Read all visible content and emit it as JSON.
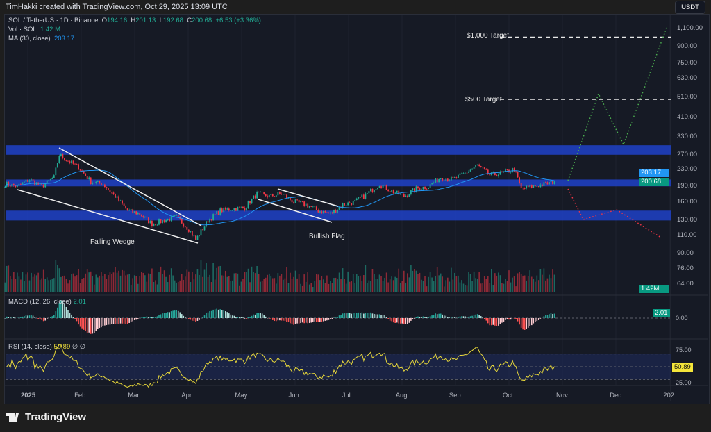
{
  "header": {
    "caption": "TimHakki created with TradingView.com, Oct 29, 2025 13:09 UTC"
  },
  "legend": {
    "symbol": "SOL / TetherUS · 1D · Binance",
    "o_label": "O",
    "o": "194.16",
    "h_label": "H",
    "h": "201.13",
    "l_label": "L",
    "l": "192.68",
    "c_label": "C",
    "c": "200.68",
    "change": "+6.53 (+3.36%)",
    "vol_label": "Vol · SOL",
    "vol": "1.42 M",
    "ma_label": "MA (30, close)",
    "ma": "203.17",
    "macd_label": "MACD (12, 26, close)",
    "macd": "2.01",
    "rsi_label": "RSI (14, close)",
    "rsi": "50.89",
    "rsi_extra": "∅ ∅"
  },
  "currency_button": "USDT",
  "price_axis": [
    "1,100.00",
    "900.00",
    "750.00",
    "630.00",
    "510.00",
    "410.00",
    "330.00",
    "270.00",
    "230.00",
    "190.00",
    "160.00",
    "130.00",
    "110.00",
    "90.00",
    "76.00",
    "64.00"
  ],
  "price_tags": {
    "ma": "203.17",
    "last": "200.68",
    "volume": "1.42M",
    "macd": "2.01",
    "macd_zero": "0.00",
    "rsi": "50.89",
    "rsi_upper": "75.00",
    "rsi_lower": "25.00"
  },
  "time_axis": [
    "2025",
    "Feb",
    "Mar",
    "Apr",
    "May",
    "Jun",
    "Jul",
    "Aug",
    "Sep",
    "Oct",
    "Nov",
    "Dec",
    "202"
  ],
  "annotations": {
    "target_1000": "$1,000 Target",
    "target_500": "$500 Target",
    "falling_wedge": "Falling Wedge",
    "bullish_flag": "Bullish Flag"
  },
  "colors": {
    "up": "#22ab94",
    "down": "#f23645",
    "zone": "#1e3fbf",
    "ma": "#2196f3",
    "rsi": "#e8d83a",
    "bull_path": "#4caf50",
    "bear_path": "#f23645"
  },
  "brand": "TradingView",
  "chart_data": {
    "type": "candlestick",
    "scale": "log",
    "ylim": [
      64,
      1100
    ],
    "interval": "1D",
    "closes_weekly": {
      "dates": [
        "2024-12-19",
        "2024-12-26",
        "2025-01-02",
        "2025-01-09",
        "2025-01-16",
        "2025-01-19",
        "2025-01-23",
        "2025-01-30",
        "2025-02-06",
        "2025-02-13",
        "2025-02-20",
        "2025-02-27",
        "2025-03-06",
        "2025-03-13",
        "2025-03-20",
        "2025-03-27",
        "2025-04-03",
        "2025-04-07",
        "2025-04-14",
        "2025-04-21",
        "2025-04-28",
        "2025-05-05",
        "2025-05-12",
        "2025-05-19",
        "2025-05-26",
        "2025-06-02",
        "2025-06-09",
        "2025-06-16",
        "2025-06-23",
        "2025-06-30",
        "2025-07-07",
        "2025-07-14",
        "2025-07-21",
        "2025-07-28",
        "2025-08-04",
        "2025-08-11",
        "2025-08-18",
        "2025-08-25",
        "2025-09-01",
        "2025-09-08",
        "2025-09-15",
        "2025-09-22",
        "2025-09-29",
        "2025-10-06",
        "2025-10-10",
        "2025-10-17",
        "2025-10-24",
        "2025-10-29"
      ],
      "values": [
        195,
        190,
        205,
        190,
        210,
        270,
        255,
        235,
        200,
        195,
        170,
        145,
        140,
        125,
        130,
        135,
        118,
        105,
        130,
        145,
        148,
        150,
        175,
        170,
        175,
        160,
        155,
        145,
        140,
        155,
        160,
        175,
        195,
        180,
        170,
        185,
        190,
        210,
        205,
        220,
        240,
        215,
        220,
        230,
        185,
        190,
        195,
        200.68
      ]
    },
    "zones": [
      [
        270,
        300
      ],
      [
        190,
        205
      ],
      [
        130,
        145
      ]
    ],
    "targets": [
      1000,
      500
    ]
  }
}
